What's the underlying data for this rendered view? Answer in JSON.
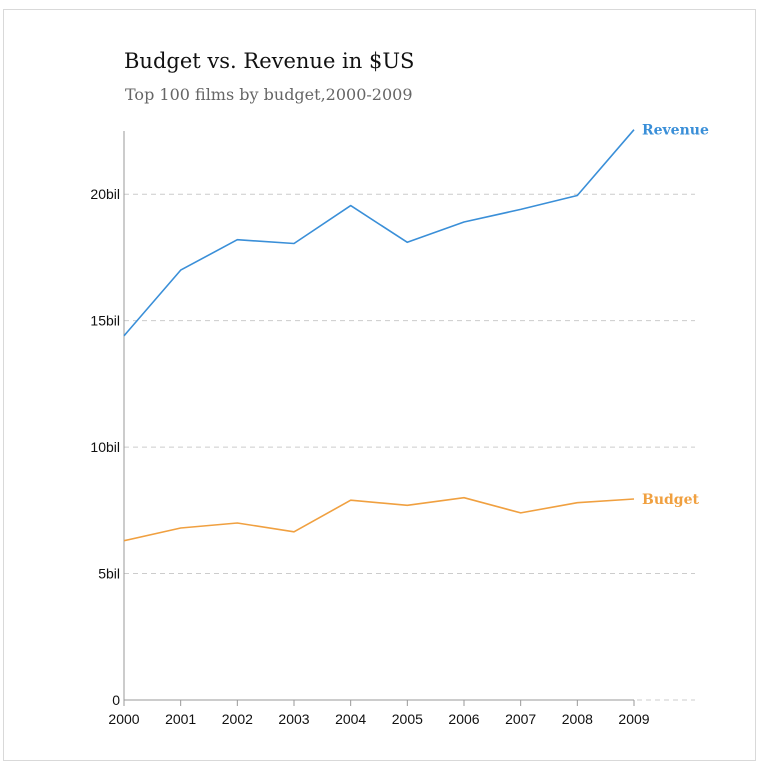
{
  "chart_data": {
    "type": "line",
    "title": "Budget vs. Revenue in $US",
    "subtitle": "Top 100 films by budget,2000-2009",
    "x": [
      2000,
      2001,
      2002,
      2003,
      2004,
      2005,
      2006,
      2007,
      2008,
      2009
    ],
    "x_tick_labels": [
      "2000",
      "2001",
      "2002",
      "2003",
      "2004",
      "2005",
      "2006",
      "2007",
      "2008",
      "2009"
    ],
    "y_ticks": [
      0,
      5,
      10,
      15,
      20
    ],
    "y_tick_labels": [
      "0",
      "5bil",
      "10bil",
      "15bil",
      "20bil"
    ],
    "ylim": [
      0,
      22.5
    ],
    "y_unit": "billion $US",
    "grid": "horizontal dashed",
    "legend": "inline labels at line ends",
    "series": [
      {
        "name": "Revenue",
        "color": "#3a8fd8",
        "values": [
          14.4,
          17.0,
          18.2,
          18.05,
          19.55,
          18.1,
          18.9,
          19.4,
          19.95,
          22.55
        ]
      },
      {
        "name": "Budget",
        "color": "#f0a040",
        "values": [
          6.3,
          6.8,
          7.0,
          6.65,
          7.9,
          7.7,
          8.0,
          7.4,
          7.8,
          7.95
        ]
      }
    ]
  }
}
